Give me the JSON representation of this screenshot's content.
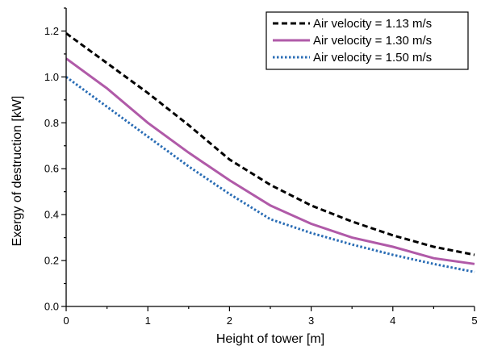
{
  "chart_data": {
    "type": "line",
    "xlabel": "Height of tower [m]",
    "ylabel": "Exergy of destruction [kW]",
    "xlim": [
      0,
      5
    ],
    "ylim": [
      0,
      1.3
    ],
    "xticks": [
      0,
      1,
      2,
      3,
      4,
      5
    ],
    "yticks": [
      0.0,
      0.2,
      0.4,
      0.6,
      0.8,
      1.0,
      1.2
    ],
    "grid": false,
    "legend_position": "top-right",
    "series": [
      {
        "name": "Air velocity = 1.13 m/s",
        "color": "#000000",
        "style": "dashed",
        "x": [
          0,
          0.5,
          1.0,
          1.5,
          2.0,
          2.5,
          3.0,
          3.5,
          4.0,
          4.5,
          5.0
        ],
        "y": [
          1.19,
          1.06,
          0.93,
          0.79,
          0.64,
          0.53,
          0.44,
          0.37,
          0.31,
          0.26,
          0.225
        ]
      },
      {
        "name": "Air velocity = 1.30 m/s",
        "color": "#b05aa8",
        "style": "solid",
        "x": [
          0,
          0.5,
          1.0,
          1.5,
          2.0,
          2.5,
          3.0,
          3.5,
          4.0,
          4.5,
          5.0
        ],
        "y": [
          1.08,
          0.95,
          0.8,
          0.67,
          0.55,
          0.44,
          0.36,
          0.3,
          0.26,
          0.21,
          0.185
        ]
      },
      {
        "name": "Air velocity = 1.50 m/s",
        "color": "#2a6db5",
        "style": "dotted",
        "x": [
          0,
          0.5,
          1.0,
          1.5,
          2.0,
          2.5,
          3.0,
          3.5,
          4.0,
          4.5,
          5.0
        ],
        "y": [
          1.0,
          0.87,
          0.74,
          0.61,
          0.49,
          0.38,
          0.32,
          0.27,
          0.225,
          0.185,
          0.15
        ]
      }
    ]
  }
}
